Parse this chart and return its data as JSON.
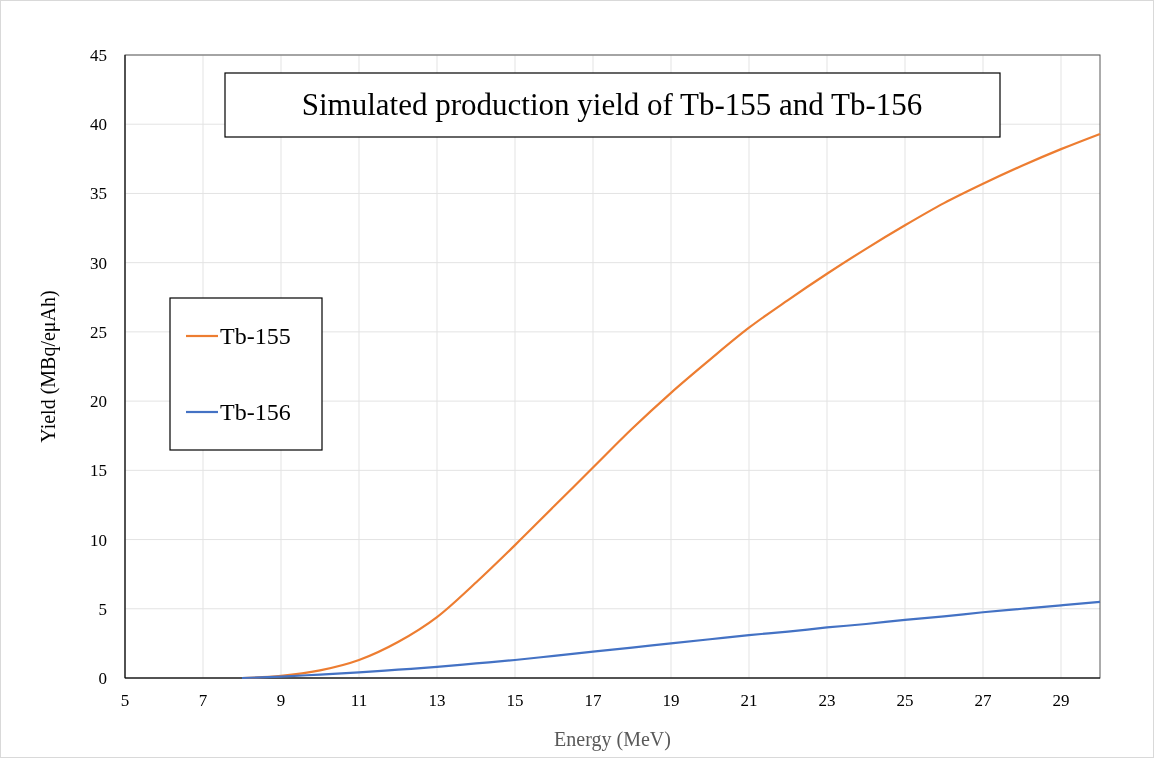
{
  "chart_data": {
    "type": "line",
    "title": "Simulated production yield of Tb-155 and Tb-156",
    "xlabel": "Energy  (MeV)",
    "ylabel": "Yield (MBq/eμAh)",
    "x": [
      8,
      9,
      10,
      11,
      12,
      13,
      14,
      15,
      16,
      17,
      18,
      19,
      20,
      21,
      22,
      23,
      24,
      25,
      26,
      27,
      28,
      29,
      30
    ],
    "series": [
      {
        "name": "Tb-155",
        "color": "#ed7d31",
        "values": [
          0,
          0.15,
          0.55,
          1.3,
          2.6,
          4.4,
          6.9,
          9.6,
          12.4,
          15.2,
          18.0,
          20.6,
          23.0,
          25.3,
          27.3,
          29.2,
          31.0,
          32.7,
          34.3,
          35.7,
          37.0,
          38.2,
          39.3
        ]
      },
      {
        "name": "Tb-156",
        "color": "#4472c4",
        "values": [
          0,
          0.1,
          0.25,
          0.4,
          0.6,
          0.8,
          1.05,
          1.3,
          1.6,
          1.9,
          2.2,
          2.5,
          2.8,
          3.1,
          3.35,
          3.65,
          3.9,
          4.2,
          4.45,
          4.75,
          5.0,
          5.25,
          5.5
        ]
      }
    ],
    "xlim": [
      5,
      30
    ],
    "xticks": [
      5,
      7,
      9,
      11,
      13,
      15,
      17,
      19,
      21,
      23,
      25,
      27,
      29
    ],
    "ylim": [
      0,
      45
    ],
    "yticks": [
      0,
      5,
      10,
      15,
      20,
      25,
      30,
      35,
      40,
      45
    ],
    "grid": true,
    "legend": "left",
    "marker": "none",
    "line_style": "solid"
  }
}
